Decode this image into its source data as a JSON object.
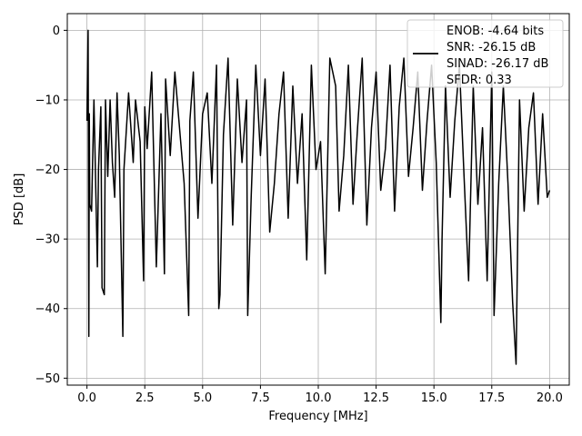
{
  "chart_data": {
    "type": "line",
    "xlabel": "Frequency [MHz]",
    "ylabel": "PSD [dB]",
    "xlim": [
      -0.85,
      20.85
    ],
    "ylim": [
      -51,
      2.4
    ],
    "xticks": [
      0.0,
      2.5,
      5.0,
      7.5,
      10.0,
      12.5,
      15.0,
      17.5,
      20.0
    ],
    "xtick_labels": [
      "0.0",
      "2.5",
      "5.0",
      "7.5",
      "10.0",
      "12.5",
      "15.0",
      "17.5",
      "20.0"
    ],
    "yticks": [
      0,
      -10,
      -20,
      -30,
      -40,
      -50
    ],
    "ytick_labels": [
      "0",
      "−10",
      "−20",
      "−30",
      "−40",
      "−50"
    ],
    "grid": true,
    "legend_position": "top-right",
    "legend": [
      "ENOB: -4.64 bits",
      "SNR: -26.15 dB",
      "SINAD: -26.17 dB",
      "SFDR: 0.33"
    ],
    "series": [
      {
        "color": "#000000",
        "x": [
          0.0,
          0.05,
          0.08,
          0.1,
          0.12,
          0.2,
          0.3,
          0.45,
          0.5,
          0.6,
          0.65,
          0.75,
          0.8,
          0.9,
          1.0,
          1.1,
          1.2,
          1.3,
          1.4,
          1.55,
          1.6,
          1.8,
          2.0,
          2.1,
          2.3,
          2.45,
          2.5,
          2.6,
          2.8,
          3.0,
          3.2,
          3.35,
          3.4,
          3.6,
          3.8,
          4.0,
          4.2,
          4.4,
          4.45,
          4.6,
          4.8,
          5.0,
          5.2,
          5.4,
          5.6,
          5.7,
          5.75,
          5.9,
          6.1,
          6.3,
          6.5,
          6.7,
          6.9,
          6.95,
          7.1,
          7.3,
          7.5,
          7.7,
          7.9,
          8.1,
          8.3,
          8.5,
          8.7,
          8.9,
          9.1,
          9.3,
          9.5,
          9.7,
          9.9,
          10.1,
          10.3,
          10.5,
          10.75,
          10.9,
          11.1,
          11.3,
          11.5,
          11.7,
          11.9,
          12.1,
          12.3,
          12.5,
          12.7,
          12.9,
          13.1,
          13.3,
          13.5,
          13.7,
          13.9,
          14.1,
          14.3,
          14.5,
          14.7,
          14.9,
          15.1,
          15.3,
          15.35,
          15.5,
          15.7,
          15.9,
          16.1,
          16.3,
          16.5,
          16.7,
          16.9,
          17.1,
          17.3,
          17.5,
          17.6,
          17.8,
          18.0,
          18.2,
          18.4,
          18.55,
          18.7,
          18.9,
          19.1,
          19.3,
          19.5,
          19.7,
          19.9,
          20.0
        ],
        "y": [
          -13,
          0,
          -44,
          -12,
          -25,
          -26,
          -10,
          -34,
          -20,
          -11,
          -37,
          -38,
          -10,
          -21,
          -10,
          -19,
          -24,
          -9,
          -18,
          -44,
          -20,
          -9,
          -19,
          -10,
          -16,
          -36,
          -11,
          -17,
          -6,
          -34,
          -12,
          -35,
          -7,
          -18,
          -6,
          -14,
          -22,
          -41,
          -13,
          -6,
          -27,
          -12,
          -9,
          -22,
          -5,
          -40,
          -38,
          -15,
          -4,
          -28,
          -7,
          -19,
          -10,
          -41,
          -24,
          -5,
          -18,
          -7,
          -29,
          -22,
          -12,
          -6,
          -27,
          -8,
          -22,
          -12,
          -33,
          -5,
          -20,
          -16,
          -35,
          -4,
          -8,
          -26,
          -18,
          -5,
          -25,
          -14,
          -4,
          -28,
          -14,
          -6,
          -23,
          -17,
          -5,
          -26,
          -11,
          -4,
          -21,
          -14,
          -6,
          -23,
          -13,
          -5,
          -19,
          -42,
          -30,
          -8,
          -24,
          -13,
          -5,
          -21,
          -36,
          -8,
          -25,
          -14,
          -36,
          -6,
          -41,
          -22,
          -8,
          -22,
          -39,
          -48,
          -10,
          -26,
          -14,
          -9,
          -25,
          -12,
          -24,
          -23
        ]
      }
    ]
  }
}
